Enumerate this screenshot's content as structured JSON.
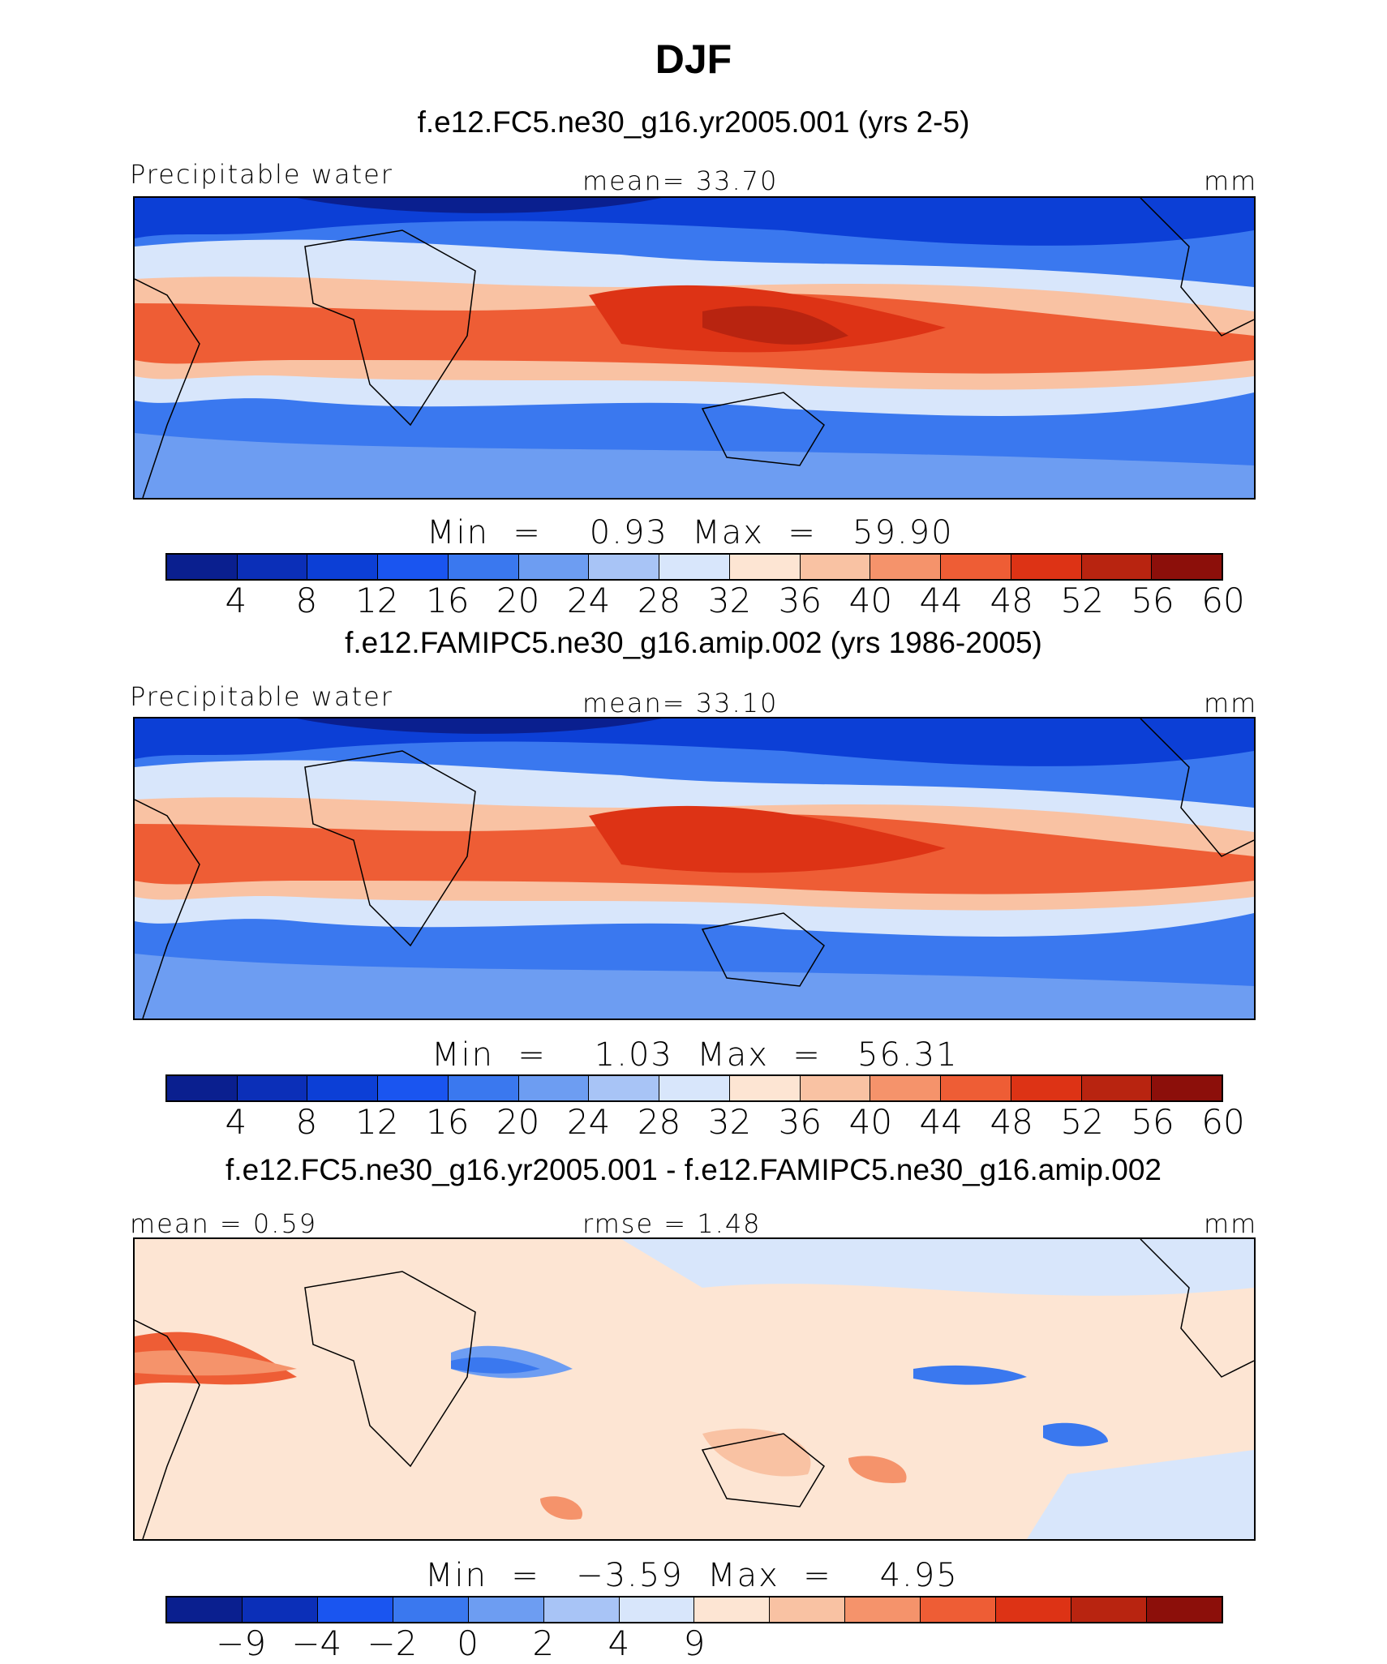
{
  "title": "DJF",
  "panels": [
    {
      "subtitle": "f.e12.FC5.ne30_g16.yr2005.001 (yrs 2-5)",
      "left_label": "Precipitable water",
      "center_label": "mean=   33.70",
      "right_label": "mm",
      "minmax": "Min  =    0.93  Max  =   59.90",
      "colorbar": [
        "4",
        "8",
        "12",
        "16",
        "20",
        "24",
        "28",
        "32",
        "36",
        "40",
        "44",
        "48",
        "52",
        "56",
        "60"
      ],
      "palette": "full"
    },
    {
      "subtitle": "f.e12.FAMIPC5.ne30_g16.amip.002 (yrs 1986-2005)",
      "left_label": "Precipitable water",
      "center_label": "mean=   33.10",
      "right_label": "mm",
      "minmax": "Min  =    1.03  Max  =   56.31",
      "colorbar": [
        "4",
        "8",
        "12",
        "16",
        "20",
        "24",
        "28",
        "32",
        "36",
        "40",
        "44",
        "48",
        "52",
        "56",
        "60"
      ],
      "palette": "full"
    },
    {
      "subtitle": "f.e12.FC5.ne30_g16.yr2005.001 - f.e12.FAMIPC5.ne30_g16.amip.002",
      "left_label": "mean =    0.59",
      "center_label": "rmse =    1.48",
      "right_label": "mm",
      "minmax": "Min  =   −3.59  Max  =    4.95",
      "colorbar": [
        "−9",
        "−4",
        "−2",
        "0",
        "2",
        "4",
        "9"
      ],
      "palette": "diff"
    }
  ],
  "colors": {
    "full": [
      "#0a1f8f",
      "#0b2fb8",
      "#0c3fd6",
      "#1a55f0",
      "#3a78ef",
      "#6d9df2",
      "#a8c4f6",
      "#d8e6fb",
      "#fde5d3",
      "#f9c2a3",
      "#f5936b",
      "#ee5d35",
      "#dd3315",
      "#b82410",
      "#8c0f0a"
    ],
    "diff": [
      "#0a1f8f",
      "#0b2fb8",
      "#1a55f0",
      "#3a78ef",
      "#6d9df2",
      "#a8c4f6",
      "#d8e6fb",
      "#fde5d3",
      "#f9c2a3",
      "#f5936b",
      "#ee5d35",
      "#dd3315",
      "#b82410",
      "#8c0f0a"
    ]
  }
}
